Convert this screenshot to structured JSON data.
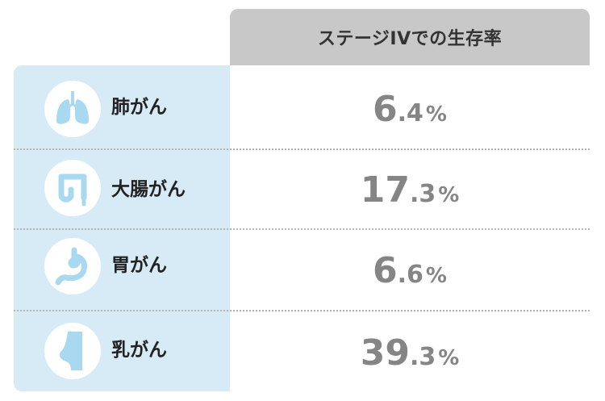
{
  "header": {
    "title": "ステージIVでの生存率"
  },
  "chart_data": {
    "type": "table",
    "column_header": "ステージIVでの生存率",
    "unit": "%",
    "categories": [
      "肺がん",
      "大腸がん",
      "胃がん",
      "乳がん"
    ],
    "values": [
      6.4,
      17.3,
      6.6,
      39.3
    ]
  },
  "rows": [
    {
      "label": "肺がん",
      "value_int": "6",
      "value_dec": ".4",
      "unit": "%",
      "icon": "lungs-icon"
    },
    {
      "label": "大腸がん",
      "value_int": "17",
      "value_dec": ".3",
      "unit": "%",
      "icon": "intestine-icon"
    },
    {
      "label": "胃がん",
      "value_int": "6",
      "value_dec": ".6",
      "unit": "%",
      "icon": "stomach-icon"
    },
    {
      "label": "乳がん",
      "value_int": "39",
      "value_dec": ".3",
      "unit": "%",
      "icon": "breast-icon"
    }
  ],
  "colors": {
    "icon_fill": "#a9d8f1",
    "left_bg": "#d6ebf6",
    "header_bg": "#c8c8c8",
    "value_text": "#858585"
  }
}
